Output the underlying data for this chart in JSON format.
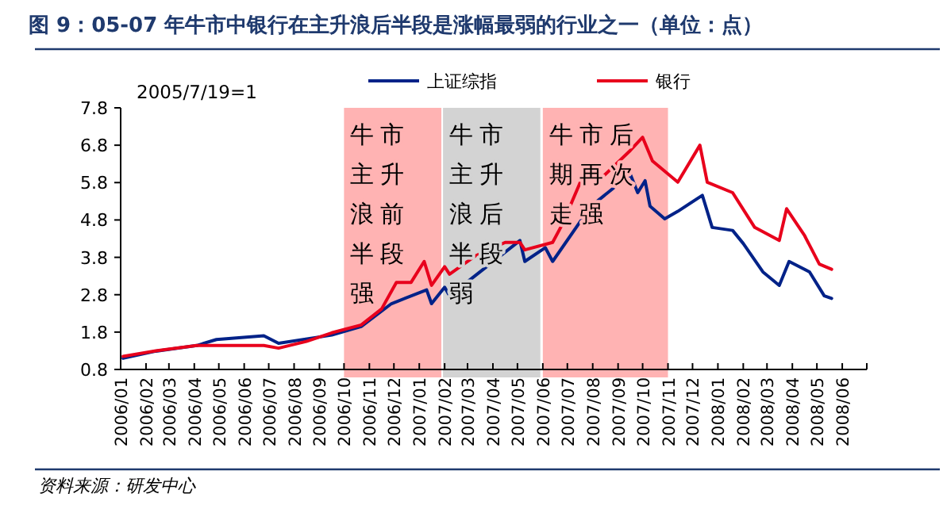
{
  "chart_data": {
    "type": "line",
    "title": "图 9：05-07 年牛市中银行在主升浪后半段是涨幅最弱的行业之一（单位：点）",
    "annotations": [
      "2005/7/19=1",
      "资料来源：研发中心"
    ],
    "legend": "top",
    "grid": false,
    "xlim": [
      "2006-01-01",
      "2008-07-01"
    ],
    "xticks": [
      {
        "value": "2006-01-01",
        "label": "2006/01"
      },
      {
        "value": "2006-02-01",
        "label": "2006/02"
      },
      {
        "value": "2006-03-01",
        "label": "2006/03"
      },
      {
        "value": "2006-04-01",
        "label": "2006/04"
      },
      {
        "value": "2006-05-01",
        "label": "2006/05"
      },
      {
        "value": "2006-06-01",
        "label": "2006/06"
      },
      {
        "value": "2006-07-01",
        "label": "2006/07"
      },
      {
        "value": "2006-08-01",
        "label": "2006/08"
      },
      {
        "value": "2006-09-01",
        "label": "2006/09"
      },
      {
        "value": "2006-10-01",
        "label": "2006/10"
      },
      {
        "value": "2006-11-01",
        "label": "2006/11"
      },
      {
        "value": "2006-12-01",
        "label": "2006/12"
      },
      {
        "value": "2007-01-01",
        "label": "2007/01"
      },
      {
        "value": "2007-02-01",
        "label": "2007/02"
      },
      {
        "value": "2007-03-01",
        "label": "2007/03"
      },
      {
        "value": "2007-04-01",
        "label": "2007/04"
      },
      {
        "value": "2007-05-01",
        "label": "2007/05"
      },
      {
        "value": "2007-06-01",
        "label": "2007/06"
      },
      {
        "value": "2007-07-01",
        "label": "2007/07"
      },
      {
        "value": "2007-08-01",
        "label": "2007/08"
      },
      {
        "value": "2007-09-01",
        "label": "2007/09"
      },
      {
        "value": "2007-10-01",
        "label": "2007/10"
      },
      {
        "value": "2007-11-01",
        "label": "2007/11"
      },
      {
        "value": "2007-12-01",
        "label": "2007/12"
      },
      {
        "value": "2008-01-01",
        "label": "2008/01"
      },
      {
        "value": "2008-02-01",
        "label": "2008/02"
      },
      {
        "value": "2008-03-01",
        "label": "2008/03"
      },
      {
        "value": "2008-04-01",
        "label": "2008/04"
      },
      {
        "value": "2008-05-01",
        "label": "2008/05"
      },
      {
        "value": "2008-06-01",
        "label": "2008/06"
      },
      {
        "value": "2008-07-01",
        "label": null
      }
    ],
    "ylim": [
      0.8,
      7.8
    ],
    "yticks": [
      0.8,
      1.8,
      2.8,
      3.8,
      4.8,
      5.8,
      6.8,
      7.8
    ],
    "bands": [
      {
        "axis": "x",
        "from": "2006-10-01",
        "to": "2007-01-28",
        "label": "牛市主升浪前半段强",
        "color": "#ffb3b3"
      },
      {
        "axis": "x",
        "from": "2007-01-30",
        "to": "2007-05-29",
        "label": "牛市主升浪后半段弱",
        "color": "#d3d3d3"
      },
      {
        "axis": "x",
        "from": "2007-06-01",
        "to": "2007-11-01",
        "label": "牛市后期再次走强",
        "color": "#ffb3b3"
      }
    ],
    "series": [
      {
        "name": "上证综指",
        "color": "#002288",
        "x": [
          "2006-01-04",
          "2006-02-13",
          "2006-04-04",
          "2006-04-28",
          "2006-06-25",
          "2006-07-13",
          "2006-09-16",
          "2006-10-22",
          "2006-11-28",
          "2007-01-10",
          "2007-01-16",
          "2007-02-01",
          "2007-02-07",
          "2007-05-04",
          "2007-05-10",
          "2007-06-04",
          "2007-06-13",
          "2007-07-19",
          "2007-08-07",
          "2007-09-16",
          "2007-09-25",
          "2007-10-04",
          "2007-10-10",
          "2007-10-28",
          "2007-11-13",
          "2007-12-13",
          "2007-12-25",
          "2008-01-19",
          "2008-02-01",
          "2008-02-25",
          "2008-03-16",
          "2008-03-28",
          "2008-04-22",
          "2008-05-10",
          "2008-05-19"
        ],
        "values": [
          1.1,
          1.29,
          1.44,
          1.6,
          1.7,
          1.5,
          1.72,
          1.95,
          2.56,
          2.93,
          2.56,
          3.0,
          2.77,
          4.25,
          3.69,
          4.06,
          3.69,
          4.83,
          5.31,
          6.02,
          5.53,
          5.85,
          5.17,
          4.83,
          5.03,
          5.46,
          4.6,
          4.52,
          4.17,
          3.41,
          3.05,
          3.69,
          3.41,
          2.77,
          2.7
        ]
      },
      {
        "name": "银行",
        "color": "#e8001c",
        "x": [
          "2006-01-04",
          "2006-02-13",
          "2006-04-04",
          "2006-04-28",
          "2006-06-25",
          "2006-07-13",
          "2006-08-16",
          "2006-09-16",
          "2006-10-22",
          "2006-11-16",
          "2006-12-04",
          "2006-12-22",
          "2007-01-07",
          "2007-01-16",
          "2007-02-01",
          "2007-02-07",
          "2007-03-10",
          "2007-04-16",
          "2007-05-04",
          "2007-05-10",
          "2007-06-13",
          "2007-06-25",
          "2007-07-25",
          "2007-08-13",
          "2007-09-16",
          "2007-10-01",
          "2007-10-13",
          "2007-11-13",
          "2007-12-10",
          "2007-12-19",
          "2008-01-19",
          "2008-02-15",
          "2008-03-16",
          "2008-03-25",
          "2008-04-16",
          "2008-05-04",
          "2008-05-19"
        ],
        "values": [
          1.15,
          1.3,
          1.44,
          1.44,
          1.44,
          1.37,
          1.55,
          1.78,
          1.99,
          2.42,
          3.13,
          3.13,
          3.69,
          3.05,
          3.55,
          3.35,
          3.83,
          4.2,
          4.2,
          4.0,
          4.2,
          4.69,
          6.23,
          5.95,
          6.66,
          7.01,
          6.38,
          5.81,
          6.8,
          5.81,
          5.53,
          4.6,
          4.25,
          5.1,
          4.38,
          3.62,
          3.48
        ]
      }
    ]
  }
}
